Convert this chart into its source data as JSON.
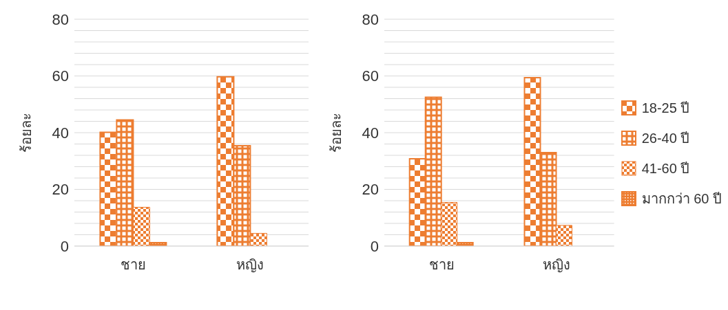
{
  "chart_data": [
    {
      "type": "bar",
      "categories": [
        "ชาย",
        "หญิง"
      ],
      "ylabel": "ร้อยละ",
      "ylim": [
        0,
        80
      ],
      "yticks": [
        0,
        {
          "value": 4,
          "label": null
        },
        {
          "value": 8,
          "label": null
        },
        {
          "value": 12,
          "label": null
        },
        {
          "value": 16,
          "label": null
        },
        20,
        {
          "value": 24,
          "label": null
        },
        {
          "value": 28,
          "label": null
        },
        {
          "value": 32,
          "label": null
        },
        {
          "value": 36,
          "label": null
        },
        40,
        {
          "value": 44,
          "label": null
        },
        {
          "value": 48,
          "label": null
        },
        {
          "value": 52,
          "label": null
        },
        {
          "value": 56,
          "label": null
        },
        60,
        {
          "value": 64,
          "label": null
        },
        {
          "value": 68,
          "label": null
        },
        {
          "value": 72,
          "label": null
        },
        {
          "value": 76,
          "label": null
        },
        80
      ],
      "grid": "y",
      "legend": false,
      "series": [
        {
          "color": "#ed7d31",
          "values": [
            40.1,
            59.7
          ]
        },
        {
          "color": "#ed7d31",
          "values": [
            44.5,
            35.4
          ]
        },
        {
          "color": "#ed7d31",
          "values": [
            13.7,
            4.5
          ]
        },
        {
          "color": "#ed7d31",
          "values": [
            1.2,
            null
          ]
        }
      ]
    },
    {
      "type": "bar",
      "categories": [
        "ชาย",
        "หญิง"
      ],
      "ylabel": "ร้อยละ",
      "ylim": [
        0,
        80
      ],
      "yticks": [
        0,
        {
          "value": 4,
          "label": null
        },
        {
          "value": 8,
          "label": null
        },
        {
          "value": 12,
          "label": null
        },
        {
          "value": 16,
          "label": null
        },
        20,
        {
          "value": 24,
          "label": null
        },
        {
          "value": 28,
          "label": null
        },
        {
          "value": 32,
          "label": null
        },
        {
          "value": 36,
          "label": null
        },
        40,
        {
          "value": 44,
          "label": null
        },
        {
          "value": 48,
          "label": null
        },
        {
          "value": 52,
          "label": null
        },
        {
          "value": 56,
          "label": null
        },
        60,
        {
          "value": 64,
          "label": null
        },
        {
          "value": 68,
          "label": null
        },
        {
          "value": 72,
          "label": null
        },
        {
          "value": 76,
          "label": null
        },
        80
      ],
      "grid": "y",
      "legend": "right",
      "series": [
        {
          "name": "18-25 ปี",
          "color": "#ed7d31",
          "values": [
            30.8,
            59.4
          ]
        },
        {
          "name": "26-40 ปี",
          "color": "#ed7d31",
          "values": [
            52.5,
            33.0
          ]
        },
        {
          "name": "41-60 ปี",
          "color": "#ed7d31",
          "values": [
            15.4,
            7.3
          ]
        },
        {
          "name": "มากกว่า 60 ปี",
          "color": "#ed7d31",
          "values": [
            1.2,
            null
          ]
        }
      ]
    }
  ]
}
